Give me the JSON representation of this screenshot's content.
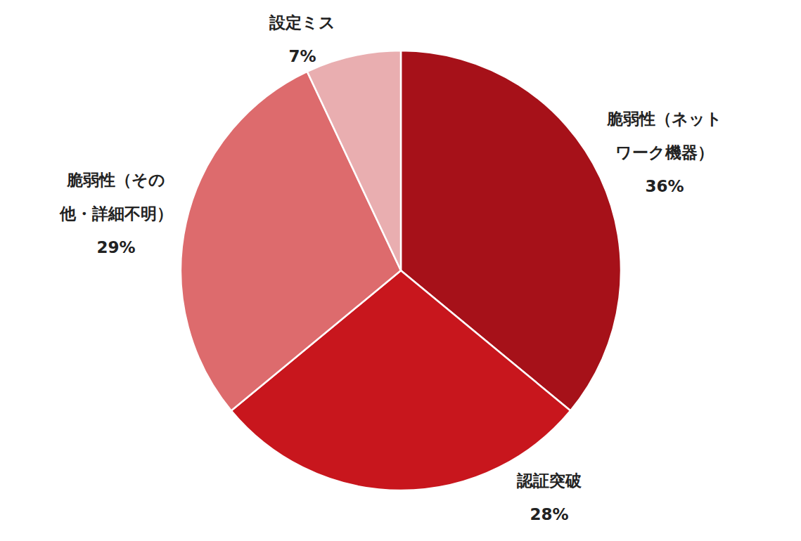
{
  "chart_data": {
    "type": "pie",
    "categories": [
      "脆弱性（ネットワーク機器）",
      "認証突破",
      "脆弱性（その他・詳細不明）",
      "設定ミス"
    ],
    "values": [
      36,
      28,
      29,
      7
    ],
    "value_labels": [
      "36%",
      "28%",
      "29%",
      "7%"
    ],
    "colors": [
      "#a61119",
      "#c8161d",
      "#dd6b6d",
      "#e9aeb0"
    ]
  }
}
